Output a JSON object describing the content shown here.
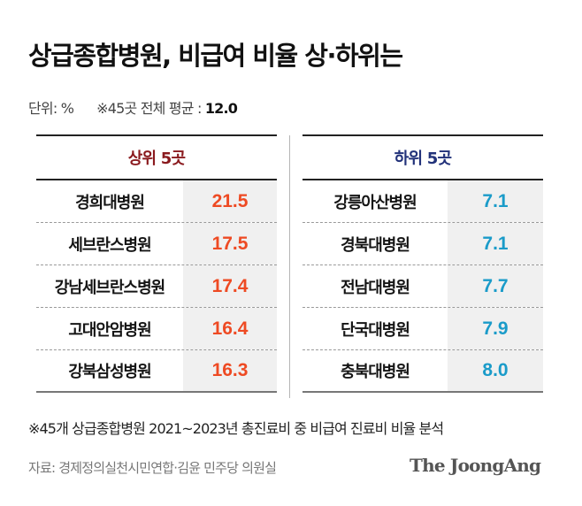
{
  "header": {
    "title": "상급종합병원, 비급여 비율 상·하위는",
    "unit_label": "단위: %",
    "average_label": "※45곳 전체 평균 : ",
    "average_value": "12.0"
  },
  "top5": {
    "heading": "상위 5곳",
    "color": "#ee4a23",
    "rows": [
      {
        "name": "경희대병원",
        "value": "21.5"
      },
      {
        "name": "세브란스병원",
        "value": "17.5"
      },
      {
        "name": "강남세브란스병원",
        "value": "17.4"
      },
      {
        "name": "고대안암병원",
        "value": "16.4"
      },
      {
        "name": "강북삼성병원",
        "value": "16.3"
      }
    ]
  },
  "bottom5": {
    "heading": "하위 5곳",
    "color": "#1a9bc9",
    "rows": [
      {
        "name": "강릉아산병원",
        "value": "7.1"
      },
      {
        "name": "경북대병원",
        "value": "7.1"
      },
      {
        "name": "전남대병원",
        "value": "7.7"
      },
      {
        "name": "단국대병원",
        "value": "7.9"
      },
      {
        "name": "충북대병원",
        "value": "8.0"
      }
    ]
  },
  "footer": {
    "note": "※45개 상급종합병원 2021~2023년 총진료비 중 비급여 진료비 비율 분석",
    "source": "자료: 경제정의실천시민연합·김윤 민주당 의원실",
    "logo": "The JoongAng"
  }
}
